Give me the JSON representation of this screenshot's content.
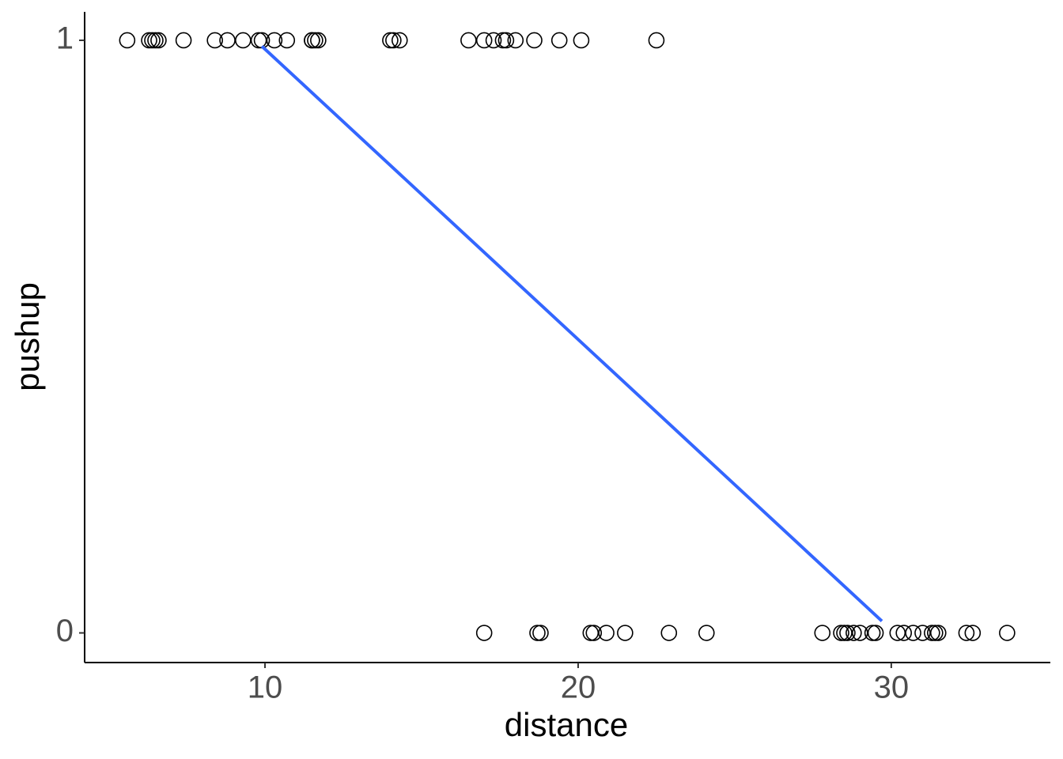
{
  "chart_data": {
    "type": "scatter",
    "x_label": "distance",
    "y_label": "pushup",
    "x": [
      5.6,
      6.3,
      6.4,
      6.5,
      6.6,
      7.4,
      8.4,
      8.8,
      9.3,
      9.8,
      9.9,
      10.3,
      10.7,
      11.5,
      11.5,
      11.6,
      11.7,
      14.0,
      14.1,
      14.3,
      16.5,
      17.0,
      17.3,
      17.6,
      17.7,
      18.0,
      18.6,
      19.4,
      20.1,
      22.5,
      17.0,
      18.7,
      18.8,
      20.4,
      20.5,
      20.9,
      21.5,
      22.9,
      24.1,
      27.8,
      28.4,
      28.5,
      28.6,
      28.8,
      29.0,
      29.4,
      29.5,
      30.2,
      30.4,
      30.7,
      31.0,
      31.3,
      31.4,
      31.5,
      32.4,
      32.6,
      33.7
    ],
    "values": [
      1,
      1,
      1,
      1,
      1,
      1,
      1,
      1,
      1,
      1,
      1,
      1,
      1,
      1,
      1,
      1,
      1,
      1,
      1,
      1,
      1,
      1,
      1,
      1,
      1,
      1,
      1,
      1,
      1,
      1,
      0,
      0,
      0,
      0,
      0,
      0,
      0,
      0,
      0,
      0,
      0,
      0,
      0,
      0,
      0,
      0,
      0,
      0,
      0,
      0,
      0,
      0,
      0,
      0,
      0,
      0,
      0
    ],
    "color": "#000000",
    "fit": {
      "x": [
        9.9,
        29.7
      ],
      "values": [
        0.99,
        0.02
      ],
      "color": "#3366ff"
    },
    "xlim": [
      4.24,
      35.08
    ],
    "ylim": [
      -0.05,
      1.048
    ],
    "xticks": [
      10,
      20,
      30
    ],
    "yticks": [
      0,
      1
    ],
    "grid": false
  }
}
